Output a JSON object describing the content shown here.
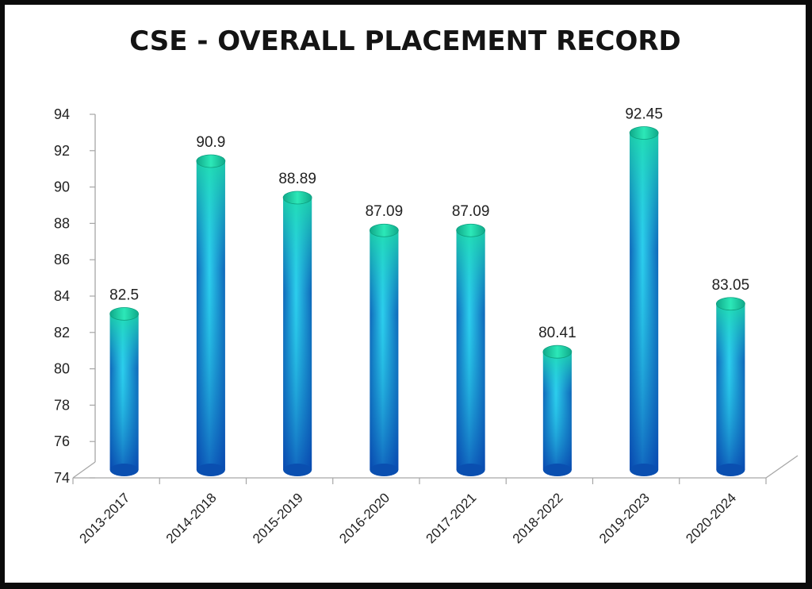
{
  "chart_data": {
    "type": "bar",
    "title": "CSE - OVERALL PLACEMENT RECORD",
    "xlabel": "",
    "ylabel": "",
    "categories": [
      "2013-2017",
      "2014-2018",
      "2015-2019",
      "2016-2020",
      "2017-2021",
      "2018-2022",
      "2019-2023",
      "2020-2024"
    ],
    "values": [
      82.5,
      90.9,
      88.89,
      87.09,
      87.09,
      80.41,
      92.45,
      83.05
    ],
    "data_labels": [
      "82.5",
      "90.9",
      "88.89",
      "87.09",
      "87.09",
      "80.41",
      "92.45",
      "83.05"
    ],
    "ylim": [
      74,
      94
    ],
    "yticks": [
      74,
      76,
      78,
      80,
      82,
      84,
      86,
      88,
      90,
      92,
      94
    ],
    "grid": false,
    "legend": "none",
    "bar_style": "3d-cylinder",
    "colors": {
      "top": "#1fd4a0",
      "middle": "#29c6e6",
      "bottom": "#0a5fc4",
      "axis": "#a6a6a6"
    }
  }
}
